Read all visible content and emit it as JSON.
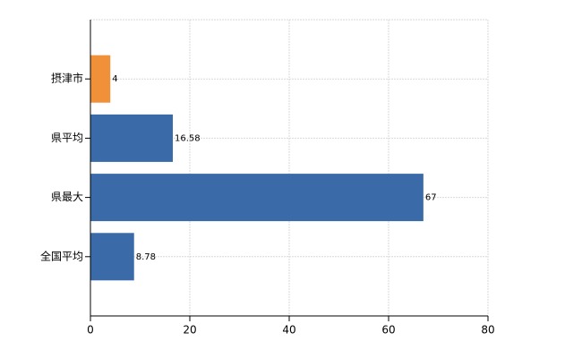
{
  "chart_data": {
    "type": "hbar",
    "categories": [
      "摂津市",
      "県平均",
      "県最大",
      "全国平均"
    ],
    "values": [
      4,
      16.58,
      67,
      8.78
    ],
    "colors": [
      "#f0913a",
      "#3a6aa8",
      "#3a6aa8",
      "#3a6aa8"
    ],
    "xlim": [
      0,
      80
    ],
    "xticks": [
      0,
      20,
      40,
      60,
      80
    ],
    "grid": true
  }
}
